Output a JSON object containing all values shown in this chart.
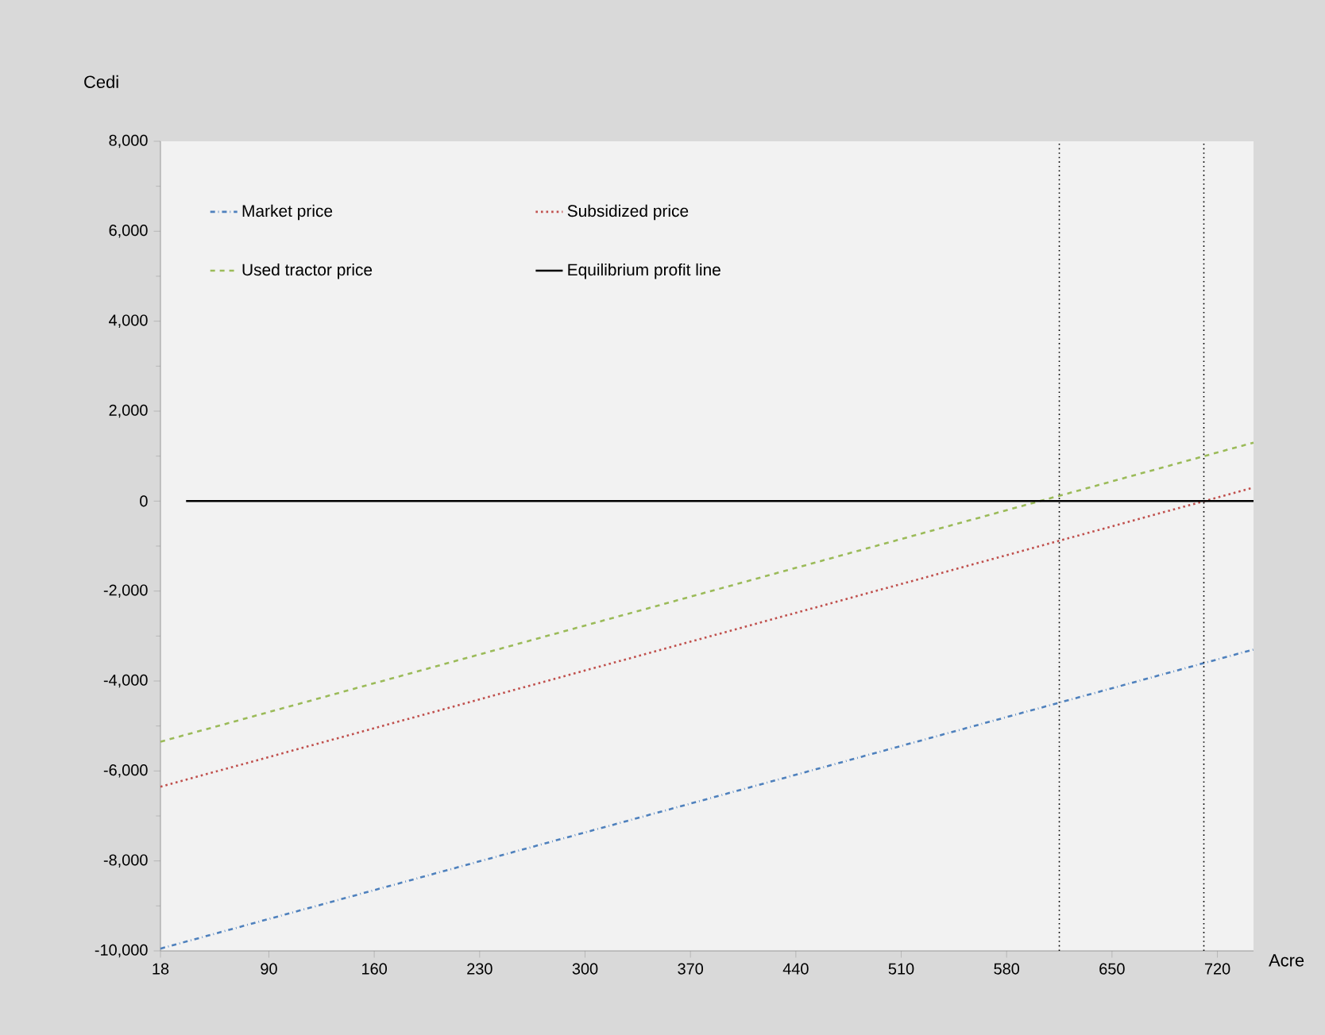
{
  "chart_data": {
    "type": "line",
    "xlabel": "Acre",
    "ylabel": "Cedi",
    "xlim": [
      18,
      744
    ],
    "xticks": [
      18,
      90,
      160,
      230,
      300,
      370,
      440,
      510,
      580,
      650,
      720
    ],
    "ylim": [
      -10000,
      8000
    ],
    "yticks": [
      {
        "value": -10000,
        "label": "-10,000"
      },
      {
        "value": -8000,
        "label": "-8,000"
      },
      {
        "value": -6000,
        "label": "-6,000"
      },
      {
        "value": -4000,
        "label": "-4,000"
      },
      {
        "value": -2000,
        "label": "-2,000"
      },
      {
        "value": 0,
        "label": "0"
      },
      {
        "value": 2000,
        "label": "2,000"
      },
      {
        "value": 4000,
        "label": "4,000"
      },
      {
        "value": 6000,
        "label": "6,000"
      },
      {
        "value": 8000,
        "label": "8,000"
      }
    ],
    "series": [
      {
        "name": "Market price",
        "color": "#4f81bd",
        "line_style": "dashdot",
        "x": [
          18,
          744
        ],
        "values": [
          -9950,
          -3300
        ]
      },
      {
        "name": "Subsidized price",
        "color": "#c0504d",
        "line_style": "dotted",
        "x": [
          18,
          744
        ],
        "values": [
          -6350,
          300
        ]
      },
      {
        "name": "Used tractor price",
        "color": "#9bbb59",
        "line_style": "dashed",
        "x": [
          18,
          744
        ],
        "values": [
          -5350,
          1300
        ]
      },
      {
        "name": "Equilibrium profit line",
        "color": "#000000",
        "line_style": "solid",
        "x": [
          35,
          744
        ],
        "values": [
          0,
          0
        ]
      }
    ],
    "ref_lines": [
      {
        "axis": "x",
        "value": 615,
        "color": "#000000",
        "line_style": "dotted"
      },
      {
        "axis": "x",
        "value": 711,
        "color": "#000000",
        "line_style": "dotted"
      }
    ],
    "grid": false,
    "legend": "top left",
    "marker": "none"
  }
}
